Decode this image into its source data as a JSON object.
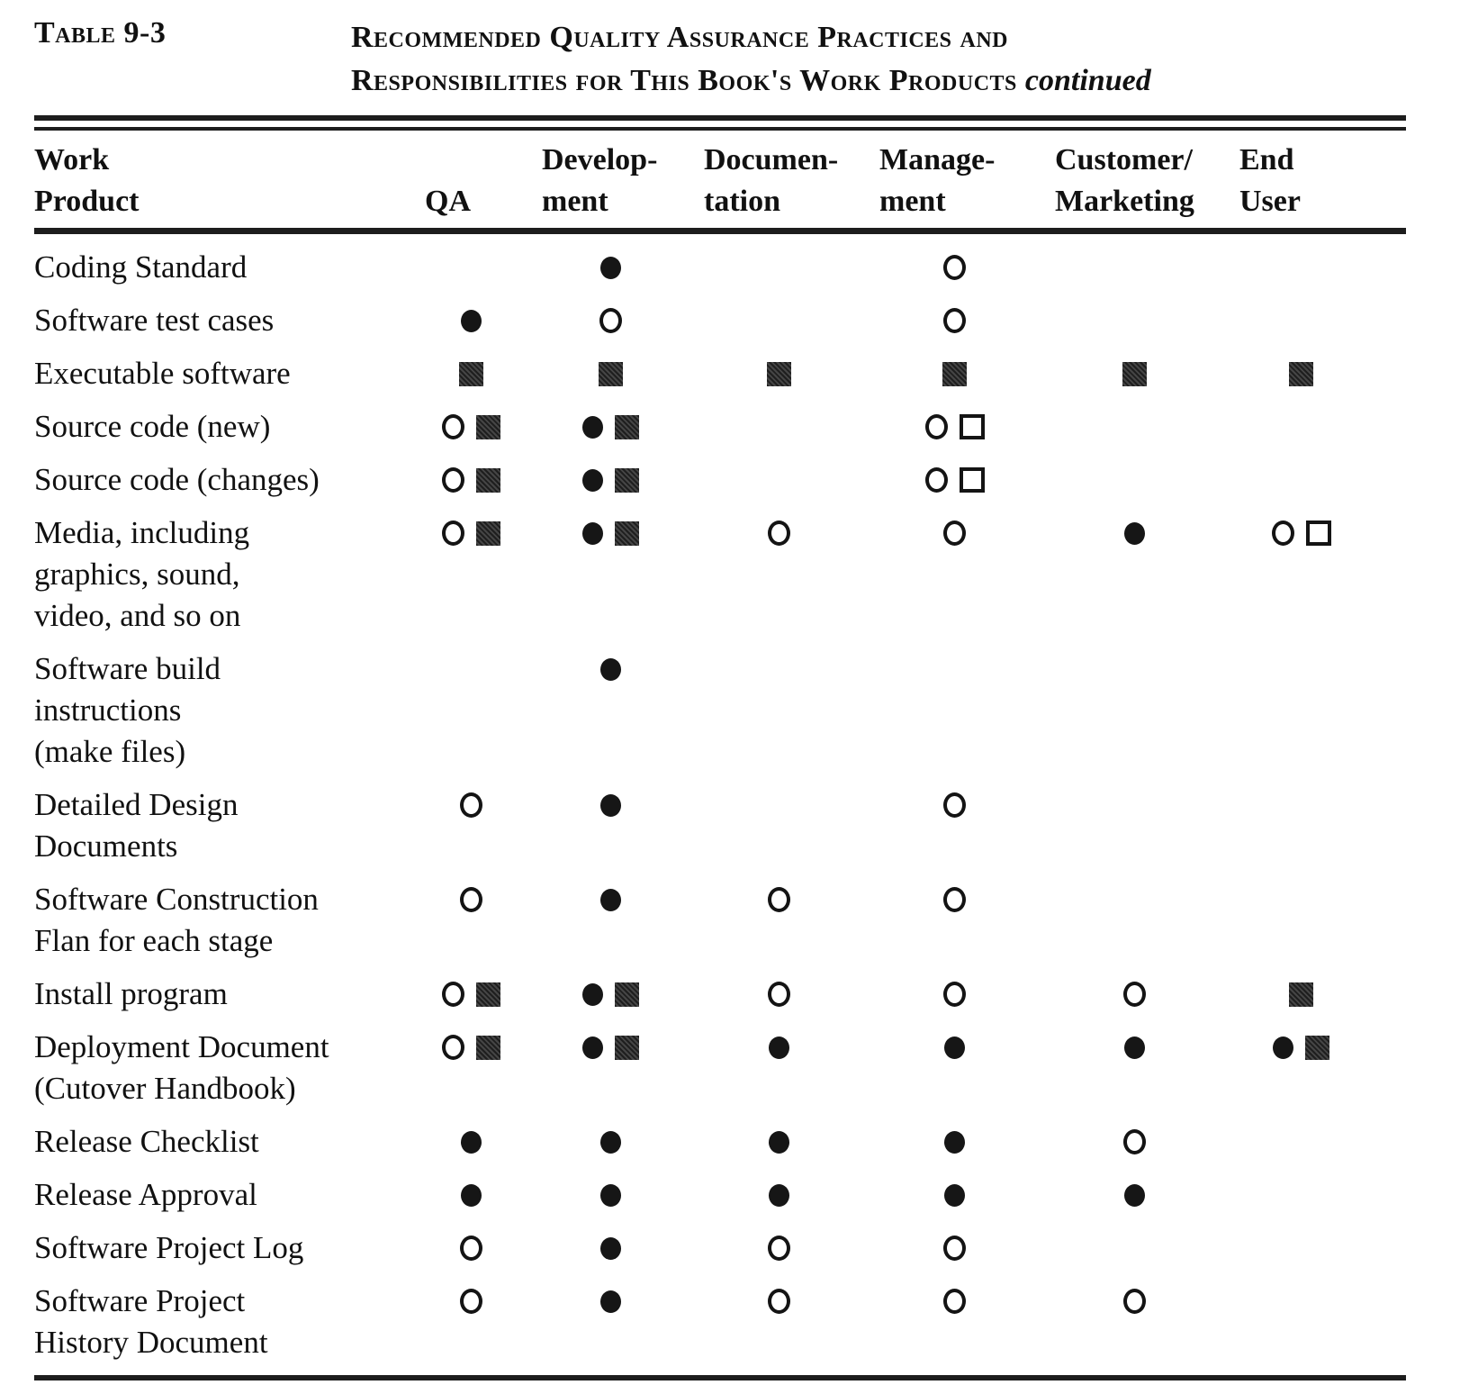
{
  "page": {
    "table_label": "Table 9-3",
    "title_line1": "Recommended Quality Assurance Practices and",
    "title_line2": "Responsibilities for This Book's Work Products",
    "title_suffix": "continued"
  },
  "colors": {
    "ink": "#111111",
    "paper": "#ffffff",
    "square_fill": "#2e2e2e"
  },
  "symbols": {
    "fc": "filled-circle",
    "oc": "open-circle",
    "fs": "filled-square",
    "os": "open-square"
  },
  "table": {
    "columns": [
      {
        "key": "work-product",
        "label": "Work\nProduct"
      },
      {
        "key": "qa",
        "label": "QA"
      },
      {
        "key": "development",
        "label": "Develop-\nment"
      },
      {
        "key": "documentation",
        "label": "Documen-\ntation"
      },
      {
        "key": "management",
        "label": "Manage-\nment"
      },
      {
        "key": "customer-marketing",
        "label": "Customer/\nMarketing"
      },
      {
        "key": "end-user",
        "label": "End\nUser"
      }
    ],
    "rows": [
      {
        "label": "Coding Standard",
        "cells": [
          [],
          [
            "fc"
          ],
          [],
          [
            "oc"
          ],
          [],
          []
        ]
      },
      {
        "label": "Software test cases",
        "cells": [
          [
            "fc"
          ],
          [
            "oc"
          ],
          [],
          [
            "oc"
          ],
          [],
          []
        ]
      },
      {
        "label": "Executable software",
        "cells": [
          [
            "fs"
          ],
          [
            "fs"
          ],
          [
            "fs"
          ],
          [
            "fs"
          ],
          [
            "fs"
          ],
          [
            "fs"
          ]
        ]
      },
      {
        "label": "Source code (new)",
        "cells": [
          [
            "oc",
            "fs"
          ],
          [
            "fc",
            "fs"
          ],
          [],
          [
            "oc",
            "os"
          ],
          [],
          []
        ]
      },
      {
        "label": "Source code (changes)",
        "cells": [
          [
            "oc",
            "fs"
          ],
          [
            "fc",
            "fs"
          ],
          [],
          [
            "oc",
            "os"
          ],
          [],
          []
        ]
      },
      {
        "label": "Media, including\ngraphics, sound,\nvideo, and so on",
        "cells": [
          [
            "oc",
            "fs"
          ],
          [
            "fc",
            "fs"
          ],
          [
            "oc"
          ],
          [
            "oc"
          ],
          [
            "fc"
          ],
          [
            "oc",
            "os"
          ]
        ]
      },
      {
        "label": "Software build\ninstructions\n(make files)",
        "cells": [
          [],
          [
            "fc"
          ],
          [],
          [],
          [],
          []
        ]
      },
      {
        "label": "Detailed Design\nDocuments",
        "cells": [
          [
            "oc"
          ],
          [
            "fc"
          ],
          [],
          [
            "oc"
          ],
          [],
          []
        ]
      },
      {
        "label": "Software Construction\nFlan for each stage",
        "cells": [
          [
            "oc"
          ],
          [
            "fc"
          ],
          [
            "oc"
          ],
          [
            "oc"
          ],
          [],
          []
        ]
      },
      {
        "label": "Install program",
        "cells": [
          [
            "oc",
            "fs"
          ],
          [
            "fc",
            "fs"
          ],
          [
            "oc"
          ],
          [
            "oc"
          ],
          [
            "oc"
          ],
          [
            "fs"
          ]
        ]
      },
      {
        "label": "Deployment Document\n(Cutover Handbook)",
        "cells": [
          [
            "oc",
            "fs"
          ],
          [
            "fc",
            "fs"
          ],
          [
            "fc"
          ],
          [
            "fc"
          ],
          [
            "fc"
          ],
          [
            "fc",
            "fs"
          ]
        ]
      },
      {
        "label": "Release Checklist",
        "cells": [
          [
            "fc"
          ],
          [
            "fc"
          ],
          [
            "fc"
          ],
          [
            "fc"
          ],
          [
            "oc"
          ],
          []
        ]
      },
      {
        "label": "Release Approval",
        "cells": [
          [
            "fc"
          ],
          [
            "fc"
          ],
          [
            "fc"
          ],
          [
            "fc"
          ],
          [
            "fc"
          ],
          []
        ]
      },
      {
        "label": "Software Project Log",
        "cells": [
          [
            "oc"
          ],
          [
            "fc"
          ],
          [
            "oc"
          ],
          [
            "oc"
          ],
          [],
          []
        ]
      },
      {
        "label": "Software Project\nHistory Document",
        "cells": [
          [
            "oc"
          ],
          [
            "fc"
          ],
          [
            "oc"
          ],
          [
            "oc"
          ],
          [
            "oc"
          ],
          []
        ]
      }
    ]
  }
}
